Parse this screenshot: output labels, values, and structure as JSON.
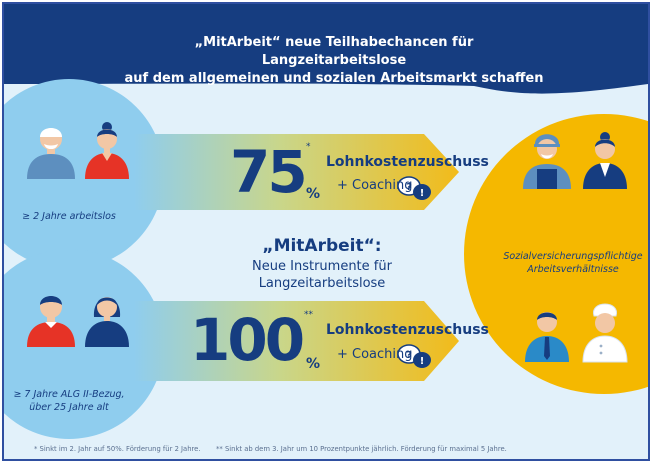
{
  "title": {
    "line1": "„MitArbeit“ neue Teilhabechancen für Langzeitarbeitslose",
    "line2": "auf dem allgemeinen und sozialen Arbeitsmarkt schaffen"
  },
  "top_offer": {
    "percent": "75",
    "percent_sign": "%",
    "footnote_mark": "*",
    "subsidy": "Lohnkostenzuschuss",
    "coaching": "+ Coaching"
  },
  "bottom_offer": {
    "percent": "100",
    "percent_sign": "%",
    "footnote_mark": "**",
    "subsidy": "Lohnkostenzuschuss",
    "coaching": "+ Coaching"
  },
  "center": {
    "heading": "„MitArbeit“:",
    "line1": "Neue Instrumente für",
    "line2": "Langzeitarbeitslose"
  },
  "left_groups": {
    "top": "≥ 2 Jahre arbeitslos",
    "bottom_line1": "≥ 7 Jahre ALG II-Bezug,",
    "bottom_line2": "über 25 Jahre alt"
  },
  "right_label": {
    "line1": "Sozialversicherungspflichtige",
    "line2": "Arbeitsverhältnisse"
  },
  "footnotes": {
    "one": "* Sinkt im 2. Jahr auf 50%. Förderung für 2 Jahre.",
    "two": "** Sinkt ab dem 3. Jahr um 10 Prozentpunkte jährlich. Förderung für maximal 5 Jahre."
  },
  "colors": {
    "navy": "#163d80",
    "light_blue": "#8fcdee",
    "yellow": "#f5b800",
    "background": "#e2f1fa"
  }
}
